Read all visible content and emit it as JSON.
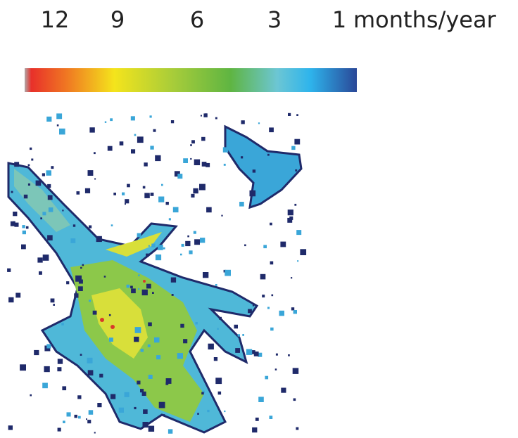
{
  "colorbar": {
    "ticks": [
      12,
      9,
      6,
      3,
      1
    ],
    "unit": "months/year"
  }
}
